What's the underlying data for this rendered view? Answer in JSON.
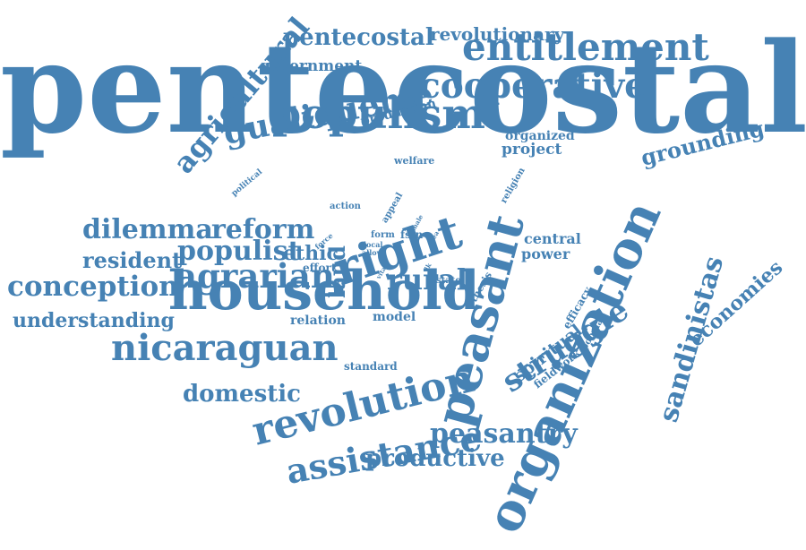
{
  "color": "#4682b4",
  "words": [
    {
      "text": "pentecostalism",
      "size": 139,
      "rot": 0
    },
    {
      "text": "organization",
      "size": 56,
      "rot": -66
    },
    {
      "text": "household",
      "size": 60,
      "rot": 0
    },
    {
      "text": "peasant",
      "size": 55,
      "rot": -75
    },
    {
      "text": "revolution",
      "size": 44,
      "rot": -14
    },
    {
      "text": "right",
      "size": 52,
      "rot": -18
    },
    {
      "text": "populism",
      "size": 46,
      "rot": 0
    },
    {
      "text": "entitlement",
      "size": 42,
      "rot": 0
    },
    {
      "text": "nicaraguan",
      "size": 40,
      "rot": 0
    },
    {
      "text": "cooperative",
      "size": 39,
      "rot": 0
    },
    {
      "text": "assistance",
      "size": 38,
      "rot": -10
    },
    {
      "text": "agrarian",
      "size": 37,
      "rot": 0
    },
    {
      "text": "gualiqueme",
      "size": 36,
      "rot": -11
    },
    {
      "text": "struggle",
      "size": 34,
      "rot": -33
    },
    {
      "text": "agricultural",
      "size": 32,
      "rot": -50
    },
    {
      "text": "rural",
      "size": 32,
      "rot": 0
    },
    {
      "text": "conception",
      "size": 31,
      "rot": 0
    },
    {
      "text": "sandinistas",
      "size": 30,
      "rot": -74
    },
    {
      "text": "dilemma",
      "size": 30,
      "rot": 0
    },
    {
      "text": "reform",
      "size": 30,
      "rot": 0
    },
    {
      "text": "populist",
      "size": 30,
      "rot": 0
    },
    {
      "text": "peasantry",
      "size": 30,
      "rot": 0
    },
    {
      "text": "pentecostal",
      "size": 26,
      "rot": 0
    },
    {
      "text": "domestic",
      "size": 26,
      "rot": 0
    },
    {
      "text": "productive",
      "size": 26,
      "rot": 0
    },
    {
      "text": "resident",
      "size": 24,
      "rot": 0
    },
    {
      "text": "grounding",
      "size": 24,
      "rot": -14
    },
    {
      "text": "understanding",
      "size": 22,
      "rot": 0
    },
    {
      "text": "economies",
      "size": 22,
      "rot": -42
    },
    {
      "text": "land",
      "size": 24,
      "rot": -90
    },
    {
      "text": "ethic",
      "size": 22,
      "rot": 0
    },
    {
      "text": "revolutionary",
      "size": 20,
      "rot": 0
    },
    {
      "text": "spiritual",
      "size": 19,
      "rot": -38
    },
    {
      "text": "government",
      "size": 17,
      "rot": 0
    },
    {
      "text": "project",
      "size": 17,
      "rot": 0
    },
    {
      "text": "central",
      "size": 16,
      "rot": 0
    },
    {
      "text": "power",
      "size": 16,
      "rot": 0
    },
    {
      "text": "relation",
      "size": 14,
      "rot": 0
    },
    {
      "text": "model",
      "size": 14,
      "rot": 0
    },
    {
      "text": "organized",
      "size": 14,
      "rot": 0
    },
    {
      "text": "production",
      "size": 14,
      "rot": -14
    },
    {
      "text": "effort",
      "size": 12,
      "rot": 0
    },
    {
      "text": "standard",
      "size": 12,
      "rot": 0
    },
    {
      "text": "efficacy",
      "size": 12,
      "rot": -60
    },
    {
      "text": "fieldwork",
      "size": 12,
      "rot": -38
    },
    {
      "text": "popular",
      "size": 10,
      "rot": -60
    },
    {
      "text": "thesis",
      "size": 11,
      "rot": -60
    },
    {
      "text": "religion",
      "size": 10,
      "rot": -60
    },
    {
      "text": "welfare",
      "size": 11,
      "rot": 0
    },
    {
      "text": "action",
      "size": 10,
      "rot": 0
    },
    {
      "text": "political",
      "size": 9,
      "rot": -40
    },
    {
      "text": "appeal",
      "size": 10,
      "rot": -60
    },
    {
      "text": "fsln",
      "size": 12,
      "rot": 0
    },
    {
      "text": "form",
      "size": 10,
      "rot": 0
    },
    {
      "text": "local",
      "size": 8,
      "rot": 0
    },
    {
      "text": "allow",
      "size": 8,
      "rot": 0
    },
    {
      "text": "force",
      "size": 8,
      "rot": -40
    },
    {
      "text": "state",
      "size": 10,
      "rot": 0
    },
    {
      "text": "vital",
      "size": 7,
      "rot": -60
    },
    {
      "text": "male",
      "size": 7,
      "rot": -60
    },
    {
      "text": "idea",
      "size": 7,
      "rot": -60
    },
    {
      "text": "ik",
      "size": 7,
      "rot": -60
    }
  ]
}
